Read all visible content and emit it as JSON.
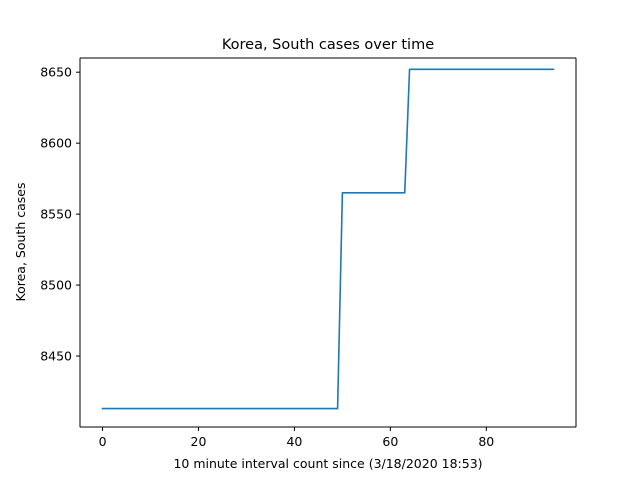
{
  "chart_data": {
    "type": "line",
    "title": "Korea, South cases over time",
    "xlabel": "10 minute interval count since (3/18/2020 18:53)",
    "ylabel": "Korea, South cases",
    "xlim": [
      -4.7,
      98.7
    ],
    "ylim": [
      8400,
      8660
    ],
    "x_ticks": [
      0,
      20,
      40,
      60,
      80
    ],
    "y_ticks": [
      8450,
      8500,
      8550,
      8600,
      8650
    ],
    "grid": false,
    "line_color": "#1f77b4",
    "series": [
      {
        "x": [
          0,
          49,
          50,
          63,
          64,
          94
        ],
        "y": [
          8413,
          8413,
          8565,
          8565,
          8652,
          8652
        ]
      }
    ]
  }
}
